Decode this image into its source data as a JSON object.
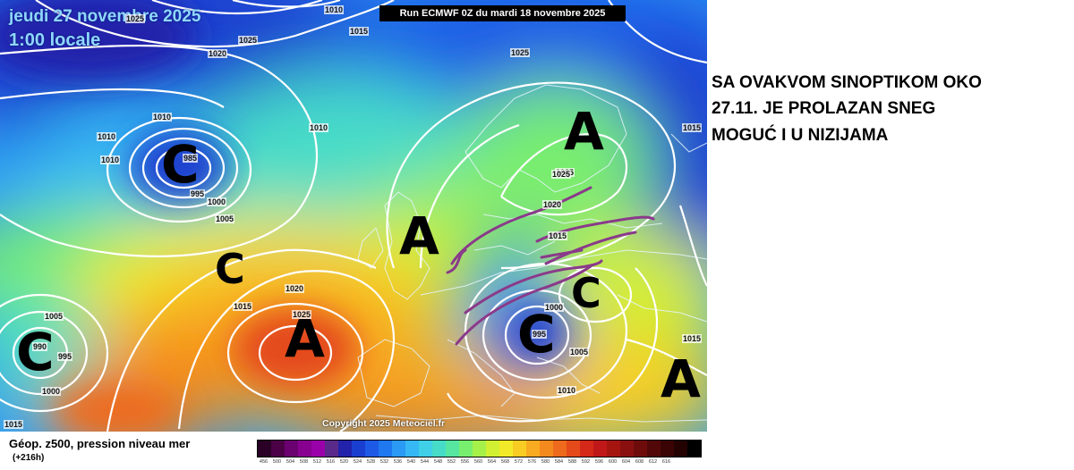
{
  "map": {
    "forecast_date": "jeudi 27 novembre 2025",
    "local_time": "1:00 locale",
    "run_label": "Run ECMWF 0Z du mardi 18 novembre 2025",
    "copyright": "Copyright 2025 Meteociel.fr",
    "pressure_centers": [
      {
        "letter": "C",
        "type": "low",
        "label_name": "low-pressure-iceland"
      },
      {
        "letter": "C",
        "type": "low",
        "label_name": "low-pressure-atlantic-mid"
      },
      {
        "letter": "C",
        "type": "low",
        "label_name": "low-pressure-atlantic-west"
      },
      {
        "letter": "A",
        "type": "high",
        "label_name": "high-pressure-scandinavia"
      },
      {
        "letter": "A",
        "type": "high",
        "label_name": "high-pressure-british-isles"
      },
      {
        "letter": "A",
        "type": "high",
        "label_name": "high-pressure-azores"
      },
      {
        "letter": "C",
        "type": "low",
        "label_name": "low-pressure-central-europe"
      },
      {
        "letter": "C",
        "type": "low",
        "label_name": "low-pressure-balkans"
      },
      {
        "letter": "A",
        "type": "high",
        "label_name": "high-pressure-russia"
      }
    ],
    "isobar_labels": [
      "1010",
      "1015",
      "1025",
      "1020",
      "1025",
      "1025",
      "1025",
      "1010",
      "1010",
      "1010",
      "1010",
      "985",
      "995",
      "1000",
      "1005",
      "1015",
      "1020",
      "1025",
      "1005",
      "995",
      "990",
      "1000",
      "1020",
      "1025",
      "1015",
      "1000",
      "995",
      "1005",
      "1010",
      "1015",
      "1015",
      "1015"
    ]
  },
  "legend": {
    "title": "Géop. z500, pression niveau mer",
    "subtitle": "(+216h)",
    "colors": [
      "#2a0026",
      "#4b0046",
      "#6b0070",
      "#870090",
      "#9a00aa",
      "#5a2a8a",
      "#2222aa",
      "#1a3fd0",
      "#1e5ae6",
      "#1f78f0",
      "#2a9af5",
      "#36b8f5",
      "#3fd0e8",
      "#46dcc8",
      "#56e6a0",
      "#78ee6e",
      "#a6f04a",
      "#d2f032",
      "#f2ea28",
      "#f8cc22",
      "#f8aa20",
      "#f48a1e",
      "#ee6a1c",
      "#e44a1a",
      "#d42818",
      "#c01818",
      "#a61410",
      "#8a1010",
      "#6e0c0c",
      "#520808",
      "#3a0404",
      "#240202",
      "#000000"
    ],
    "ticks": [
      "456",
      "500",
      "504",
      "508",
      "512",
      "516",
      "520",
      "524",
      "528",
      "532",
      "536",
      "540",
      "544",
      "548",
      "552",
      "556",
      "560",
      "564",
      "568",
      "572",
      "576",
      "580",
      "584",
      "588",
      "592",
      "596",
      "600",
      "604",
      "608",
      "612",
      "616",
      "",
      ""
    ]
  },
  "annotation": {
    "lines": [
      "SA OVAKVOM SINOPTIKOM OKO",
      "27.11. JE PROLAZAN SNEG",
      "MOGUĆ I U NIZIJAMA"
    ],
    "drawn_color": "#8a3a8a"
  }
}
